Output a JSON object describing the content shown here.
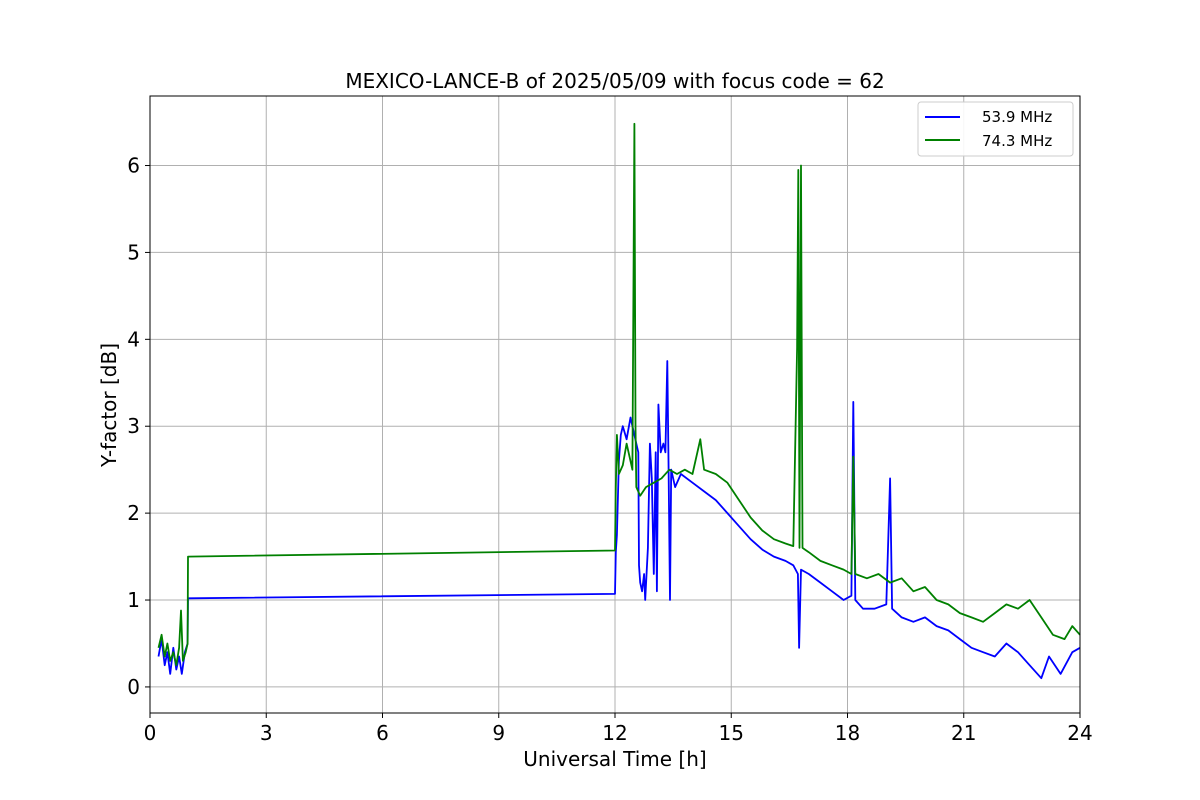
{
  "chart_data": {
    "type": "line",
    "title": "MEXICO-LANCE-B of 2025/05/09 with focus code = 62",
    "xlabel": "Universal Time [h]",
    "ylabel": "Y-factor [dB]",
    "xlim": [
      0,
      24
    ],
    "ylim": [
      -0.3,
      6.8
    ],
    "xticks": [
      0,
      3,
      6,
      9,
      12,
      15,
      18,
      21,
      24
    ],
    "yticks": [
      0,
      1,
      2,
      3,
      4,
      5,
      6
    ],
    "grid": true,
    "legend_position": "top-right",
    "series": [
      {
        "name": "53.9 MHz",
        "color": "#0000ff",
        "points": [
          [
            0.22,
            0.35
          ],
          [
            0.3,
            0.55
          ],
          [
            0.38,
            0.25
          ],
          [
            0.45,
            0.4
          ],
          [
            0.52,
            0.15
          ],
          [
            0.6,
            0.45
          ],
          [
            0.68,
            0.2
          ],
          [
            0.75,
            0.35
          ],
          [
            0.82,
            0.15
          ],
          [
            0.9,
            0.4
          ],
          [
            0.97,
            0.5
          ],
          [
            0.98,
            1.02
          ],
          [
            12.0,
            1.07
          ],
          [
            12.02,
            1.55
          ],
          [
            12.05,
            1.75
          ],
          [
            12.1,
            2.6
          ],
          [
            12.15,
            2.9
          ],
          [
            12.2,
            3.0
          ],
          [
            12.3,
            2.85
          ],
          [
            12.4,
            3.1
          ],
          [
            12.5,
            2.9
          ],
          [
            12.55,
            2.8
          ],
          [
            12.6,
            2.7
          ],
          [
            12.62,
            1.4
          ],
          [
            12.65,
            1.2
          ],
          [
            12.7,
            1.1
          ],
          [
            12.75,
            1.3
          ],
          [
            12.78,
            1.0
          ],
          [
            12.85,
            1.6
          ],
          [
            12.9,
            2.8
          ],
          [
            12.95,
            2.4
          ],
          [
            13.0,
            1.3
          ],
          [
            13.05,
            2.7
          ],
          [
            13.08,
            1.1
          ],
          [
            13.12,
            3.25
          ],
          [
            13.18,
            2.7
          ],
          [
            13.25,
            2.8
          ],
          [
            13.3,
            2.7
          ],
          [
            13.35,
            3.75
          ],
          [
            13.38,
            2.6
          ],
          [
            13.42,
            1.0
          ],
          [
            13.45,
            2.5
          ],
          [
            13.55,
            2.3
          ],
          [
            13.7,
            2.45
          ],
          [
            14.0,
            2.35
          ],
          [
            14.3,
            2.25
          ],
          [
            14.6,
            2.15
          ],
          [
            14.9,
            2.0
          ],
          [
            15.2,
            1.85
          ],
          [
            15.5,
            1.7
          ],
          [
            15.8,
            1.58
          ],
          [
            16.1,
            1.5
          ],
          [
            16.4,
            1.45
          ],
          [
            16.6,
            1.4
          ],
          [
            16.72,
            1.3
          ],
          [
            16.75,
            0.45
          ],
          [
            16.8,
            1.35
          ],
          [
            17.0,
            1.3
          ],
          [
            17.3,
            1.2
          ],
          [
            17.6,
            1.1
          ],
          [
            17.9,
            1.0
          ],
          [
            18.1,
            1.05
          ],
          [
            18.15,
            3.28
          ],
          [
            18.2,
            1.0
          ],
          [
            18.4,
            0.9
          ],
          [
            18.7,
            0.9
          ],
          [
            19.0,
            0.95
          ],
          [
            19.1,
            2.4
          ],
          [
            19.15,
            0.9
          ],
          [
            19.4,
            0.8
          ],
          [
            19.7,
            0.75
          ],
          [
            20.0,
            0.8
          ],
          [
            20.3,
            0.7
          ],
          [
            20.6,
            0.65
          ],
          [
            20.9,
            0.55
          ],
          [
            21.2,
            0.45
          ],
          [
            21.5,
            0.4
          ],
          [
            21.8,
            0.35
          ],
          [
            22.1,
            0.5
          ],
          [
            22.4,
            0.4
          ],
          [
            22.7,
            0.25
          ],
          [
            23.0,
            0.1
          ],
          [
            23.2,
            0.35
          ],
          [
            23.5,
            0.15
          ],
          [
            23.8,
            0.4
          ],
          [
            24.0,
            0.45
          ]
        ]
      },
      {
        "name": "74.3 MHz",
        "color": "#008000",
        "points": [
          [
            0.22,
            0.45
          ],
          [
            0.3,
            0.6
          ],
          [
            0.38,
            0.35
          ],
          [
            0.45,
            0.5
          ],
          [
            0.52,
            0.3
          ],
          [
            0.6,
            0.4
          ],
          [
            0.68,
            0.25
          ],
          [
            0.75,
            0.45
          ],
          [
            0.8,
            0.88
          ],
          [
            0.85,
            0.3
          ],
          [
            0.92,
            0.4
          ],
          [
            0.97,
            0.5
          ],
          [
            0.98,
            1.5
          ],
          [
            12.0,
            1.57
          ],
          [
            12.02,
            2.3
          ],
          [
            12.05,
            2.9
          ],
          [
            12.1,
            2.45
          ],
          [
            12.2,
            2.55
          ],
          [
            12.3,
            2.8
          ],
          [
            12.4,
            2.6
          ],
          [
            12.45,
            2.5
          ],
          [
            12.5,
            6.48
          ],
          [
            12.53,
            3.0
          ],
          [
            12.55,
            2.3
          ],
          [
            12.65,
            2.2
          ],
          [
            12.8,
            2.3
          ],
          [
            13.0,
            2.35
          ],
          [
            13.2,
            2.4
          ],
          [
            13.4,
            2.5
          ],
          [
            13.6,
            2.45
          ],
          [
            13.8,
            2.5
          ],
          [
            14.0,
            2.45
          ],
          [
            14.2,
            2.85
          ],
          [
            14.3,
            2.5
          ],
          [
            14.6,
            2.45
          ],
          [
            14.9,
            2.35
          ],
          [
            15.2,
            2.15
          ],
          [
            15.5,
            1.95
          ],
          [
            15.8,
            1.8
          ],
          [
            16.1,
            1.7
          ],
          [
            16.4,
            1.65
          ],
          [
            16.6,
            1.62
          ],
          [
            16.7,
            3.9
          ],
          [
            16.73,
            5.95
          ],
          [
            16.76,
            1.6
          ],
          [
            16.8,
            6.0
          ],
          [
            16.84,
            1.6
          ],
          [
            17.0,
            1.55
          ],
          [
            17.3,
            1.45
          ],
          [
            17.6,
            1.4
          ],
          [
            17.9,
            1.35
          ],
          [
            18.1,
            1.3
          ],
          [
            18.15,
            2.65
          ],
          [
            18.2,
            1.3
          ],
          [
            18.5,
            1.25
          ],
          [
            18.8,
            1.3
          ],
          [
            19.1,
            1.2
          ],
          [
            19.4,
            1.25
          ],
          [
            19.7,
            1.1
          ],
          [
            20.0,
            1.15
          ],
          [
            20.3,
            1.0
          ],
          [
            20.6,
            0.95
          ],
          [
            20.9,
            0.85
          ],
          [
            21.2,
            0.8
          ],
          [
            21.5,
            0.75
          ],
          [
            21.8,
            0.85
          ],
          [
            22.1,
            0.95
          ],
          [
            22.4,
            0.9
          ],
          [
            22.7,
            1.0
          ],
          [
            23.0,
            0.8
          ],
          [
            23.3,
            0.6
          ],
          [
            23.6,
            0.55
          ],
          [
            23.8,
            0.7
          ],
          [
            24.0,
            0.6
          ]
        ]
      }
    ]
  }
}
